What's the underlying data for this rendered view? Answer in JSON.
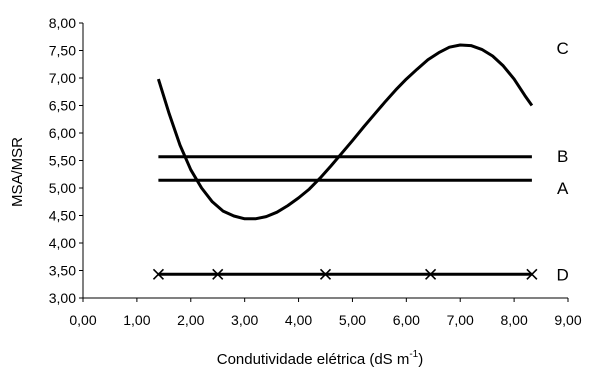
{
  "chart_data": {
    "type": "line",
    "xlabel": "Condutividade elétrica (dS m",
    "xlabel_sup": "-1",
    "xlabel_close": ")",
    "ylabel": "MSA/MSR",
    "xlim": [
      0,
      9
    ],
    "ylim": [
      3,
      8
    ],
    "x_ticks": [
      "0,00",
      "1,00",
      "2,00",
      "3,00",
      "4,00",
      "5,00",
      "6,00",
      "7,00",
      "8,00",
      "9,00"
    ],
    "y_ticks": [
      "3,00",
      "3,50",
      "4,00",
      "4,50",
      "5,00",
      "5,50",
      "6,00",
      "6,50",
      "7,00",
      "7,50",
      "8,00"
    ],
    "grid": false,
    "series": [
      {
        "name": "C",
        "label_x": 8.9,
        "label_y": 7.55,
        "marker": "none",
        "x": [
          1.4,
          1.6,
          1.8,
          2.0,
          2.2,
          2.4,
          2.6,
          2.8,
          3.0,
          3.2,
          3.4,
          3.6,
          3.8,
          4.0,
          4.2,
          4.4,
          4.6,
          4.8,
          5.0,
          5.2,
          5.4,
          5.6,
          5.8,
          6.0,
          6.2,
          6.4,
          6.6,
          6.8,
          7.0,
          7.2,
          7.4,
          7.6,
          7.8,
          8.0,
          8.2,
          8.33
        ],
        "y": [
          6.98,
          6.35,
          5.78,
          5.33,
          5.0,
          4.75,
          4.58,
          4.49,
          4.44,
          4.44,
          4.48,
          4.56,
          4.68,
          4.82,
          4.98,
          5.18,
          5.4,
          5.63,
          5.86,
          6.1,
          6.33,
          6.56,
          6.78,
          6.98,
          7.16,
          7.33,
          7.46,
          7.56,
          7.6,
          7.59,
          7.52,
          7.4,
          7.22,
          6.98,
          6.68,
          6.5
        ]
      },
      {
        "name": "B",
        "label_x": 8.9,
        "label_y": 5.58,
        "marker": "none",
        "x": [
          1.4,
          8.33
        ],
        "y": [
          5.57,
          5.57
        ]
      },
      {
        "name": "A",
        "label_x": 8.9,
        "label_y": 5.0,
        "marker": "none",
        "x": [
          1.4,
          8.33
        ],
        "y": [
          5.14,
          5.14
        ]
      },
      {
        "name": "D",
        "label_x": 8.9,
        "label_y": 3.43,
        "marker": "x",
        "x": [
          1.4,
          2.5,
          4.5,
          6.45,
          8.33
        ],
        "y": [
          3.43,
          3.43,
          3.43,
          3.43,
          3.43
        ]
      }
    ]
  }
}
